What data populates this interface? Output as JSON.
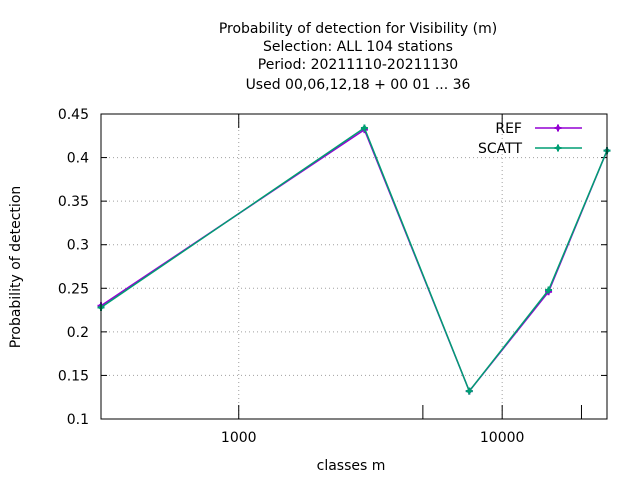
{
  "chart_data": {
    "type": "line",
    "title_lines": [
      "Probability of detection  for Visibility (m)",
      "Selection: ALL    104 stations",
      "Period: 20211110-20211130",
      "Used  00,06,12,18 + 00 01 ... 36"
    ],
    "xlabel": "classes m",
    "ylabel": "Probability of detection",
    "x_scale": "log",
    "xlim": [
      300,
      25000
    ],
    "ylim": [
      0.1,
      0.45
    ],
    "x_ticks": [
      1000,
      10000
    ],
    "x_tick_labels": [
      "1000",
      "10000"
    ],
    "x_marker_ticks": [
      5000,
      20000
    ],
    "y_ticks": [
      0.1,
      0.15,
      0.2,
      0.25,
      0.3,
      0.35,
      0.4,
      0.45
    ],
    "y_tick_labels": [
      "0.1",
      "0.15",
      "0.2",
      "0.25",
      "0.3",
      "0.35",
      "0.4",
      "0.45"
    ],
    "grid": true,
    "legend_position": "top-right",
    "series": [
      {
        "name": "REF",
        "color": "#9400d3",
        "x": [
          300,
          3000,
          7500,
          15000,
          25000
        ],
        "y": [
          0.23,
          0.432,
          0.132,
          0.246,
          0.408
        ]
      },
      {
        "name": "SCATT",
        "color": "#009e73",
        "x": [
          300,
          3000,
          7500,
          15000,
          25000
        ],
        "y": [
          0.228,
          0.434,
          0.132,
          0.248,
          0.408
        ]
      }
    ]
  }
}
